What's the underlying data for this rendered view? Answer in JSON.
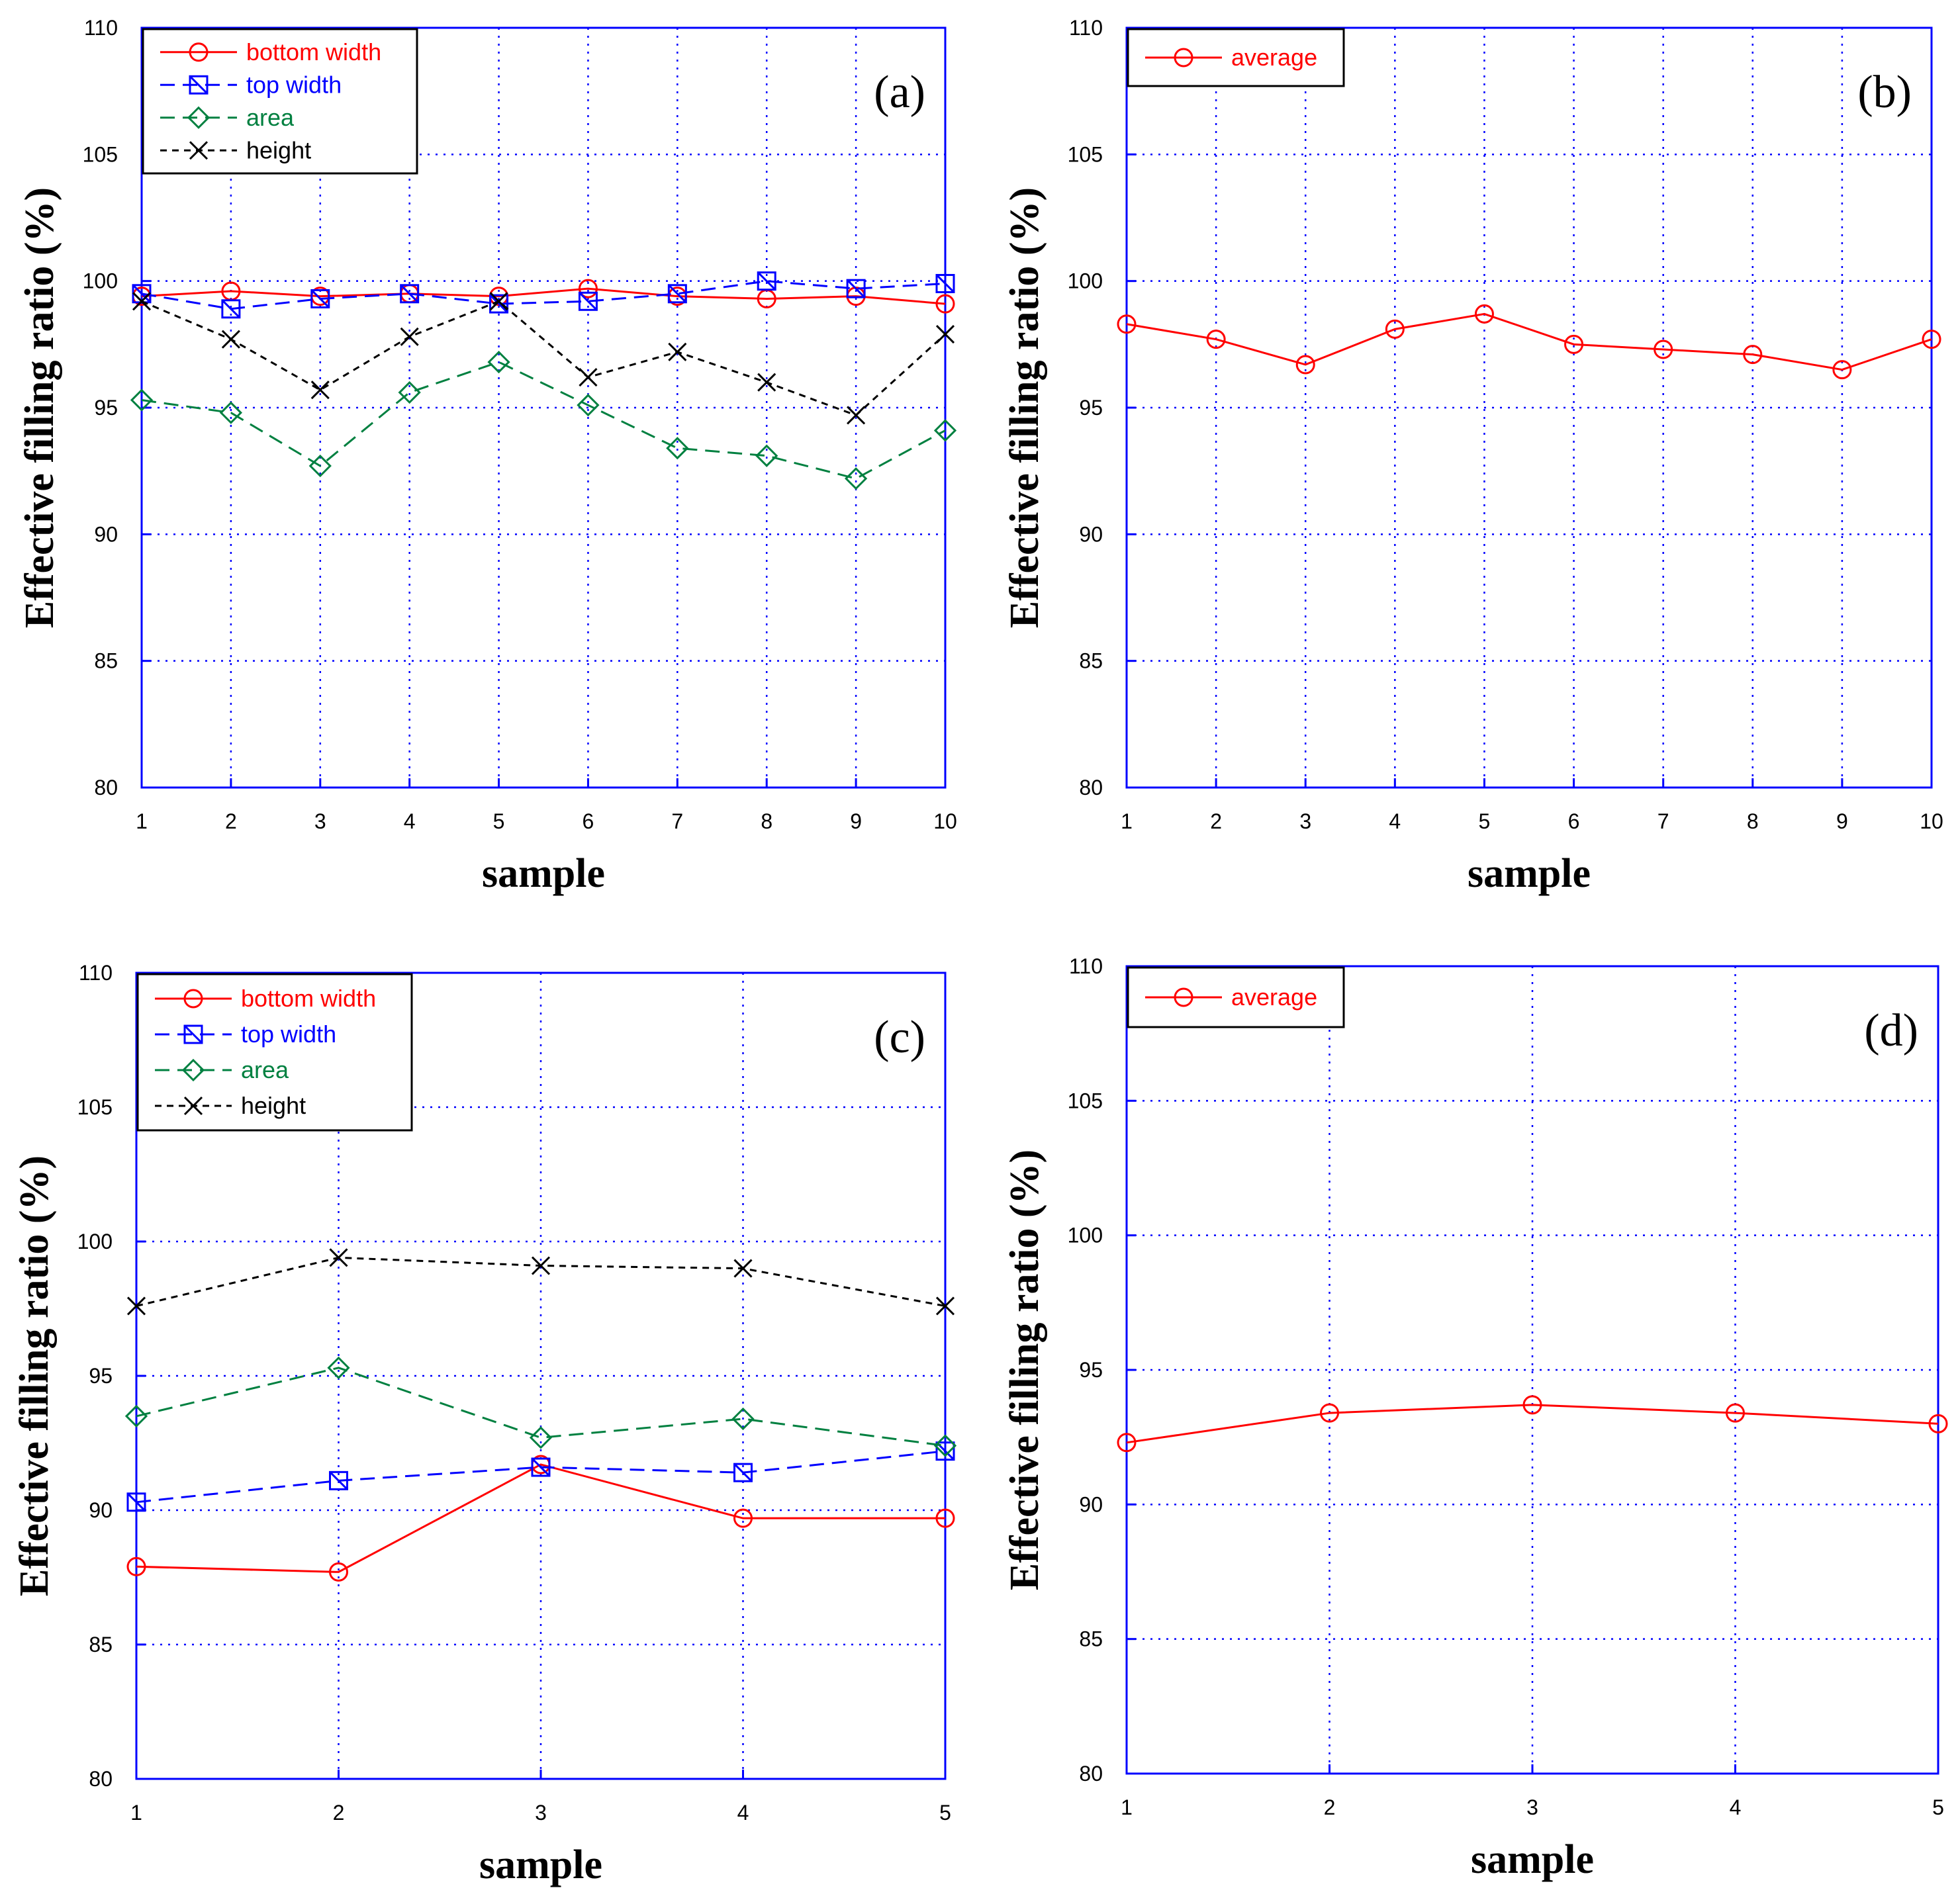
{
  "chart_data": [
    {
      "type": "line",
      "panel_label": "(a)",
      "xlabel": "sample",
      "ylabel": "Effective filling ratio  (%)",
      "x": [
        1,
        2,
        3,
        4,
        5,
        6,
        7,
        8,
        9,
        10
      ],
      "xlim": [
        1,
        10
      ],
      "ylim": [
        80,
        110
      ],
      "yticks": [
        80,
        85,
        90,
        95,
        100,
        105,
        110
      ],
      "grid": true,
      "legend_position": "top-left",
      "series": [
        {
          "name": "bottom width",
          "color": "#ff0000",
          "marker": "circle",
          "dash": "solid",
          "values": [
            99.4,
            99.6,
            99.4,
            99.5,
            99.4,
            99.7,
            99.4,
            99.3,
            99.4,
            99.1
          ]
        },
        {
          "name": "top width",
          "color": "#0000ff",
          "marker": "square",
          "dash": "dashed",
          "values": [
            99.5,
            98.9,
            99.3,
            99.5,
            99.1,
            99.2,
            99.5,
            100.0,
            99.7,
            99.9
          ]
        },
        {
          "name": "area",
          "color": "#008040",
          "marker": "diamond",
          "dash": "dashed",
          "values": [
            95.3,
            94.8,
            92.7,
            95.6,
            96.8,
            95.1,
            93.4,
            93.1,
            92.2,
            94.1
          ]
        },
        {
          "name": "height",
          "color": "#000000",
          "marker": "x",
          "dash": "dotted",
          "values": [
            99.2,
            97.7,
            95.7,
            97.8,
            99.2,
            96.2,
            97.2,
            96.0,
            94.7,
            97.9
          ]
        }
      ]
    },
    {
      "type": "line",
      "panel_label": "(b)",
      "xlabel": "sample",
      "ylabel": "Effective filling ratio  (%)",
      "x": [
        1,
        2,
        3,
        4,
        5,
        6,
        7,
        8,
        9,
        10
      ],
      "xlim": [
        1,
        10
      ],
      "ylim": [
        80,
        110
      ],
      "yticks": [
        80,
        85,
        90,
        95,
        100,
        105,
        110
      ],
      "grid": true,
      "legend_position": "top-left",
      "series": [
        {
          "name": "average",
          "color": "#ff0000",
          "marker": "circle",
          "dash": "solid",
          "values": [
            98.3,
            97.7,
            96.7,
            98.1,
            98.7,
            97.5,
            97.3,
            97.1,
            96.5,
            97.7
          ]
        }
      ]
    },
    {
      "type": "line",
      "panel_label": "(c)",
      "xlabel": "sample",
      "ylabel": "Effective filling ratio  (%)",
      "x": [
        1,
        2,
        3,
        4,
        5
      ],
      "xlim": [
        1,
        5
      ],
      "ylim": [
        80,
        110
      ],
      "yticks": [
        80,
        85,
        90,
        95,
        100,
        105,
        110
      ],
      "grid": true,
      "legend_position": "top-left",
      "series": [
        {
          "name": "bottom width",
          "color": "#ff0000",
          "marker": "circle",
          "dash": "solid",
          "values": [
            87.9,
            87.7,
            91.7,
            89.7,
            89.7
          ]
        },
        {
          "name": "top width",
          "color": "#0000ff",
          "marker": "square",
          "dash": "dashed",
          "values": [
            90.3,
            91.1,
            91.6,
            91.4,
            92.2
          ]
        },
        {
          "name": "area",
          "color": "#008040",
          "marker": "diamond",
          "dash": "dashed",
          "values": [
            93.5,
            95.3,
            92.7,
            93.4,
            92.4
          ]
        },
        {
          "name": "height",
          "color": "#000000",
          "marker": "x",
          "dash": "dotted",
          "values": [
            97.6,
            99.4,
            99.1,
            99.0,
            97.6
          ]
        }
      ]
    },
    {
      "type": "line",
      "panel_label": "(d)",
      "xlabel": "sample",
      "ylabel": "Effective filling ratio  (%)",
      "x": [
        1,
        2,
        3,
        4,
        5
      ],
      "xlim": [
        1,
        5
      ],
      "ylim": [
        80,
        110
      ],
      "yticks": [
        80,
        85,
        90,
        95,
        100,
        105,
        110
      ],
      "grid": true,
      "legend_position": "top-left",
      "series": [
        {
          "name": "average",
          "color": "#ff0000",
          "marker": "circle",
          "dash": "solid",
          "values": [
            92.3,
            93.4,
            93.7,
            93.4,
            93.0
          ]
        }
      ]
    }
  ]
}
